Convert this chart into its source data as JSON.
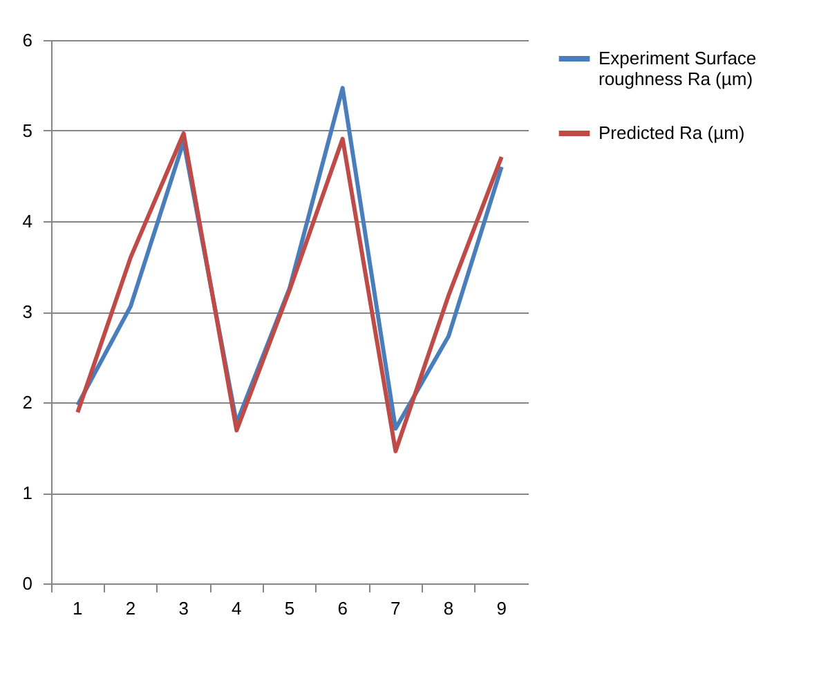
{
  "chart_data": {
    "type": "line",
    "categories": [
      "1",
      "2",
      "3",
      "4",
      "5",
      "6",
      "7",
      "8",
      "9"
    ],
    "series": [
      {
        "name": "Experiment Surface roughness Ra (µm)",
        "color": "#4a7ebb",
        "values": [
          1.97,
          3.06,
          4.88,
          1.77,
          3.26,
          5.47,
          1.71,
          2.73,
          4.6
        ]
      },
      {
        "name": "Predicted Ra (µm)",
        "color": "#be4b48",
        "values": [
          1.89,
          3.6,
          4.97,
          1.69,
          3.24,
          4.91,
          1.46,
          3.18,
          4.71
        ]
      }
    ],
    "ylim": [
      0,
      6
    ],
    "yticks": [
      0,
      1,
      2,
      3,
      4,
      5,
      6
    ],
    "grid": "y",
    "legend": "right",
    "marker": "none",
    "line_style": "solid"
  }
}
